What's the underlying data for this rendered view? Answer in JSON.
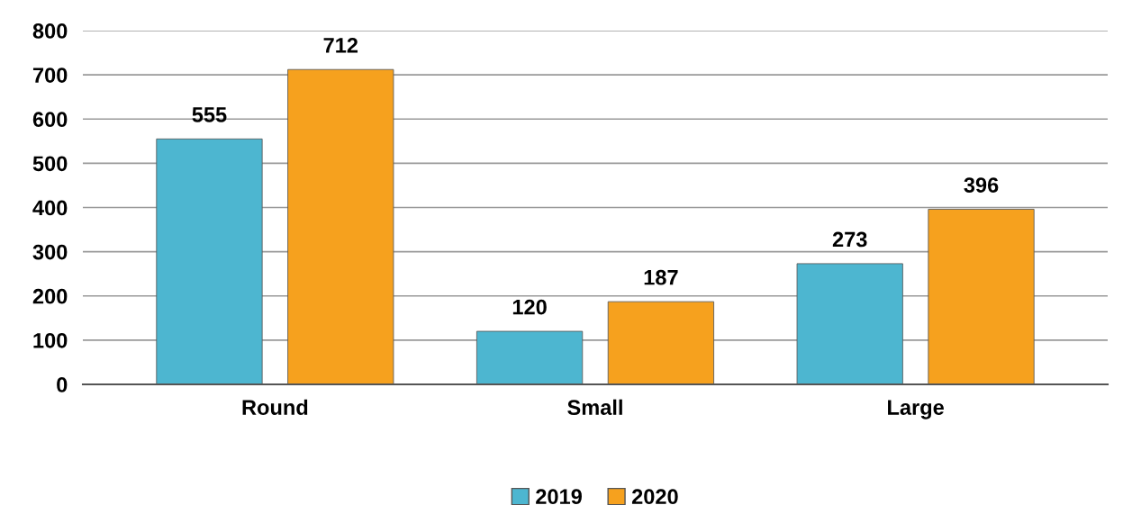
{
  "chart_data": {
    "type": "bar",
    "categories": [
      "Round",
      "Small",
      "Large"
    ],
    "series": [
      {
        "name": "2019",
        "color": "#4db6d0",
        "values": [
          555,
          120,
          273
        ]
      },
      {
        "name": "2020",
        "color": "#f6a11e",
        "values": [
          712,
          187,
          396
        ]
      }
    ],
    "ylim": [
      0,
      800
    ],
    "yticks": [
      0,
      100,
      200,
      300,
      400,
      500,
      600,
      700,
      800
    ],
    "grid": "y",
    "legend": "bottom",
    "data_labels": true
  }
}
